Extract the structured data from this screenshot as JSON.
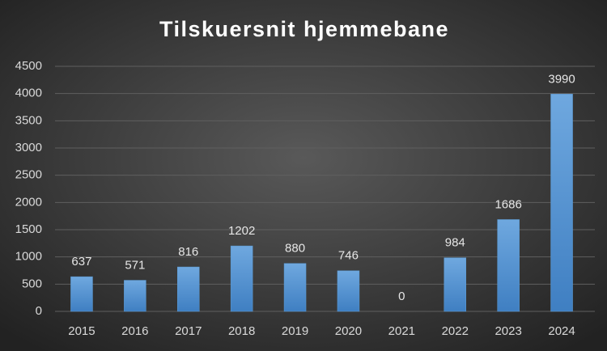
{
  "chart_data": {
    "type": "bar",
    "title": "Tilskuersnit hjemmebane",
    "categories": [
      "2015",
      "2016",
      "2017",
      "2018",
      "2019",
      "2020",
      "2021",
      "2022",
      "2023",
      "2024"
    ],
    "values": [
      637,
      571,
      816,
      1202,
      880,
      746,
      0,
      984,
      1686,
      3990
    ],
    "color": "#5b9bd5",
    "ylim": [
      0,
      4500
    ],
    "yticks": [
      0,
      500,
      1000,
      1500,
      2000,
      2500,
      3000,
      3500,
      4000,
      4500
    ],
    "grid": true
  }
}
